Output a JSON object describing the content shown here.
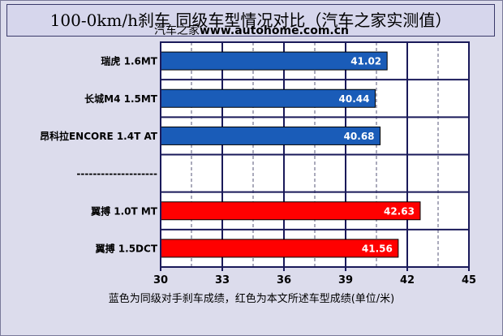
{
  "title": "100-0km/h刹车  同级车型情况对比（汽车之家实测值）",
  "subtitle_prefix": "汽车之家",
  "subtitle_site": "www.autohome.com.cn",
  "footnote": "蓝色为同级对手刹车成绩，红色为本文所述车型成绩(单位/米)",
  "colors": {
    "blue": "#1a5cb8",
    "red": "#ff0000",
    "plot_bg": "#ffffff",
    "grid": "#1a1a5a"
  },
  "chart_data": {
    "type": "bar",
    "orientation": "horizontal",
    "categories": [
      "瑞虎 1.6MT",
      "长城M4 1.5MT",
      "昂科拉ENCORE 1.4T AT",
      "--------------------",
      "翼搏 1.0T MT",
      "翼搏 1.5DCT"
    ],
    "values": [
      41.02,
      40.44,
      40.68,
      null,
      42.63,
      41.56
    ],
    "value_labels": [
      "41.02",
      "40.44",
      "40.68",
      "",
      "42.63",
      "41.56"
    ],
    "bar_colors": [
      "blue",
      "blue",
      "blue",
      "none",
      "red",
      "red"
    ],
    "xlim": [
      30,
      45
    ],
    "xticks": [
      "30",
      "33",
      "36",
      "39",
      "42",
      "45"
    ],
    "grid": true,
    "xlabel": "",
    "ylabel": ""
  }
}
